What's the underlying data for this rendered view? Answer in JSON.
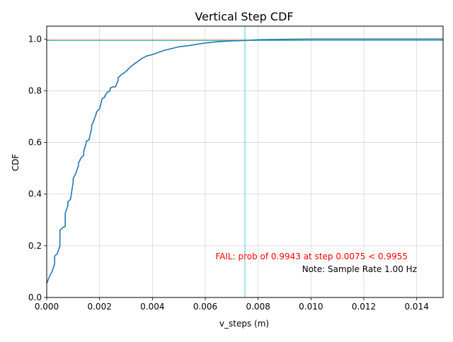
{
  "chart_data": {
    "type": "line",
    "title": "Vertical Step CDF",
    "xlabel": "v_steps (m)",
    "ylabel": "CDF",
    "xlim": [
      0,
      0.015
    ],
    "ylim": [
      0,
      1.05
    ],
    "x_ticks": [
      "0.000",
      "0.002",
      "0.004",
      "0.006",
      "0.008",
      "0.010",
      "0.012",
      "0.014"
    ],
    "x_tick_values": [
      0,
      0.002,
      0.004,
      0.006,
      0.008,
      0.01,
      0.012,
      0.014
    ],
    "y_ticks": [
      "0.0",
      "0.2",
      "0.4",
      "0.6",
      "0.8",
      "1.0"
    ],
    "y_tick_values": [
      0,
      0.2,
      0.4,
      0.6,
      0.8,
      1.0
    ],
    "grid": true,
    "series": [
      {
        "color": "#1f77b4",
        "x": [
          0,
          0.0001,
          0.0002,
          0.0003,
          0.0003,
          0.0004,
          0.0005,
          0.0005,
          0.0006,
          0.0007,
          0.0007,
          0.0008,
          0.0008,
          0.0009,
          0.001,
          0.001,
          0.0011,
          0.0012,
          0.0012,
          0.0013,
          0.0014,
          0.0014,
          0.0015,
          0.0015,
          0.0016,
          0.0017,
          0.0017,
          0.0018,
          0.0019,
          0.002,
          0.0021,
          0.0022,
          0.0022,
          0.0023,
          0.0024,
          0.0024,
          0.0025,
          0.0026,
          0.0027,
          0.0027,
          0.0028,
          0.003,
          0.0032,
          0.0034,
          0.0036,
          0.0038,
          0.004,
          0.0044,
          0.0046,
          0.005,
          0.0054,
          0.006,
          0.0065,
          0.007,
          0.0075,
          0.008,
          0.009,
          0.01,
          0.012,
          0.015
        ],
        "y": [
          0.055,
          0.08,
          0.1,
          0.13,
          0.16,
          0.17,
          0.2,
          0.26,
          0.27,
          0.275,
          0.325,
          0.355,
          0.37,
          0.38,
          0.445,
          0.46,
          0.48,
          0.51,
          0.52,
          0.54,
          0.55,
          0.565,
          0.6,
          0.605,
          0.61,
          0.655,
          0.665,
          0.69,
          0.72,
          0.73,
          0.77,
          0.775,
          0.78,
          0.795,
          0.8,
          0.81,
          0.815,
          0.815,
          0.84,
          0.85,
          0.86,
          0.875,
          0.895,
          0.91,
          0.925,
          0.935,
          0.94,
          0.955,
          0.96,
          0.97,
          0.975,
          0.985,
          0.99,
          0.993,
          0.9943,
          0.997,
          0.999,
          1.0,
          1.0,
          1.0
        ]
      }
    ],
    "reference_lines": [
      {
        "orientation": "horizontal",
        "value": 0.9955,
        "color": "#ff7f0e"
      },
      {
        "orientation": "horizontal",
        "value": 0.9943,
        "color": "#17becf"
      },
      {
        "orientation": "vertical",
        "value": 0.0075,
        "color": "#17becf"
      }
    ],
    "annotations": [
      {
        "text": "FAIL: prob of 0.9943 at step 0.0075 < 0.9955",
        "color": "#ff0000"
      },
      {
        "text": "Note: Sample Rate 1.00 Hz",
        "color": "#000000"
      }
    ]
  }
}
